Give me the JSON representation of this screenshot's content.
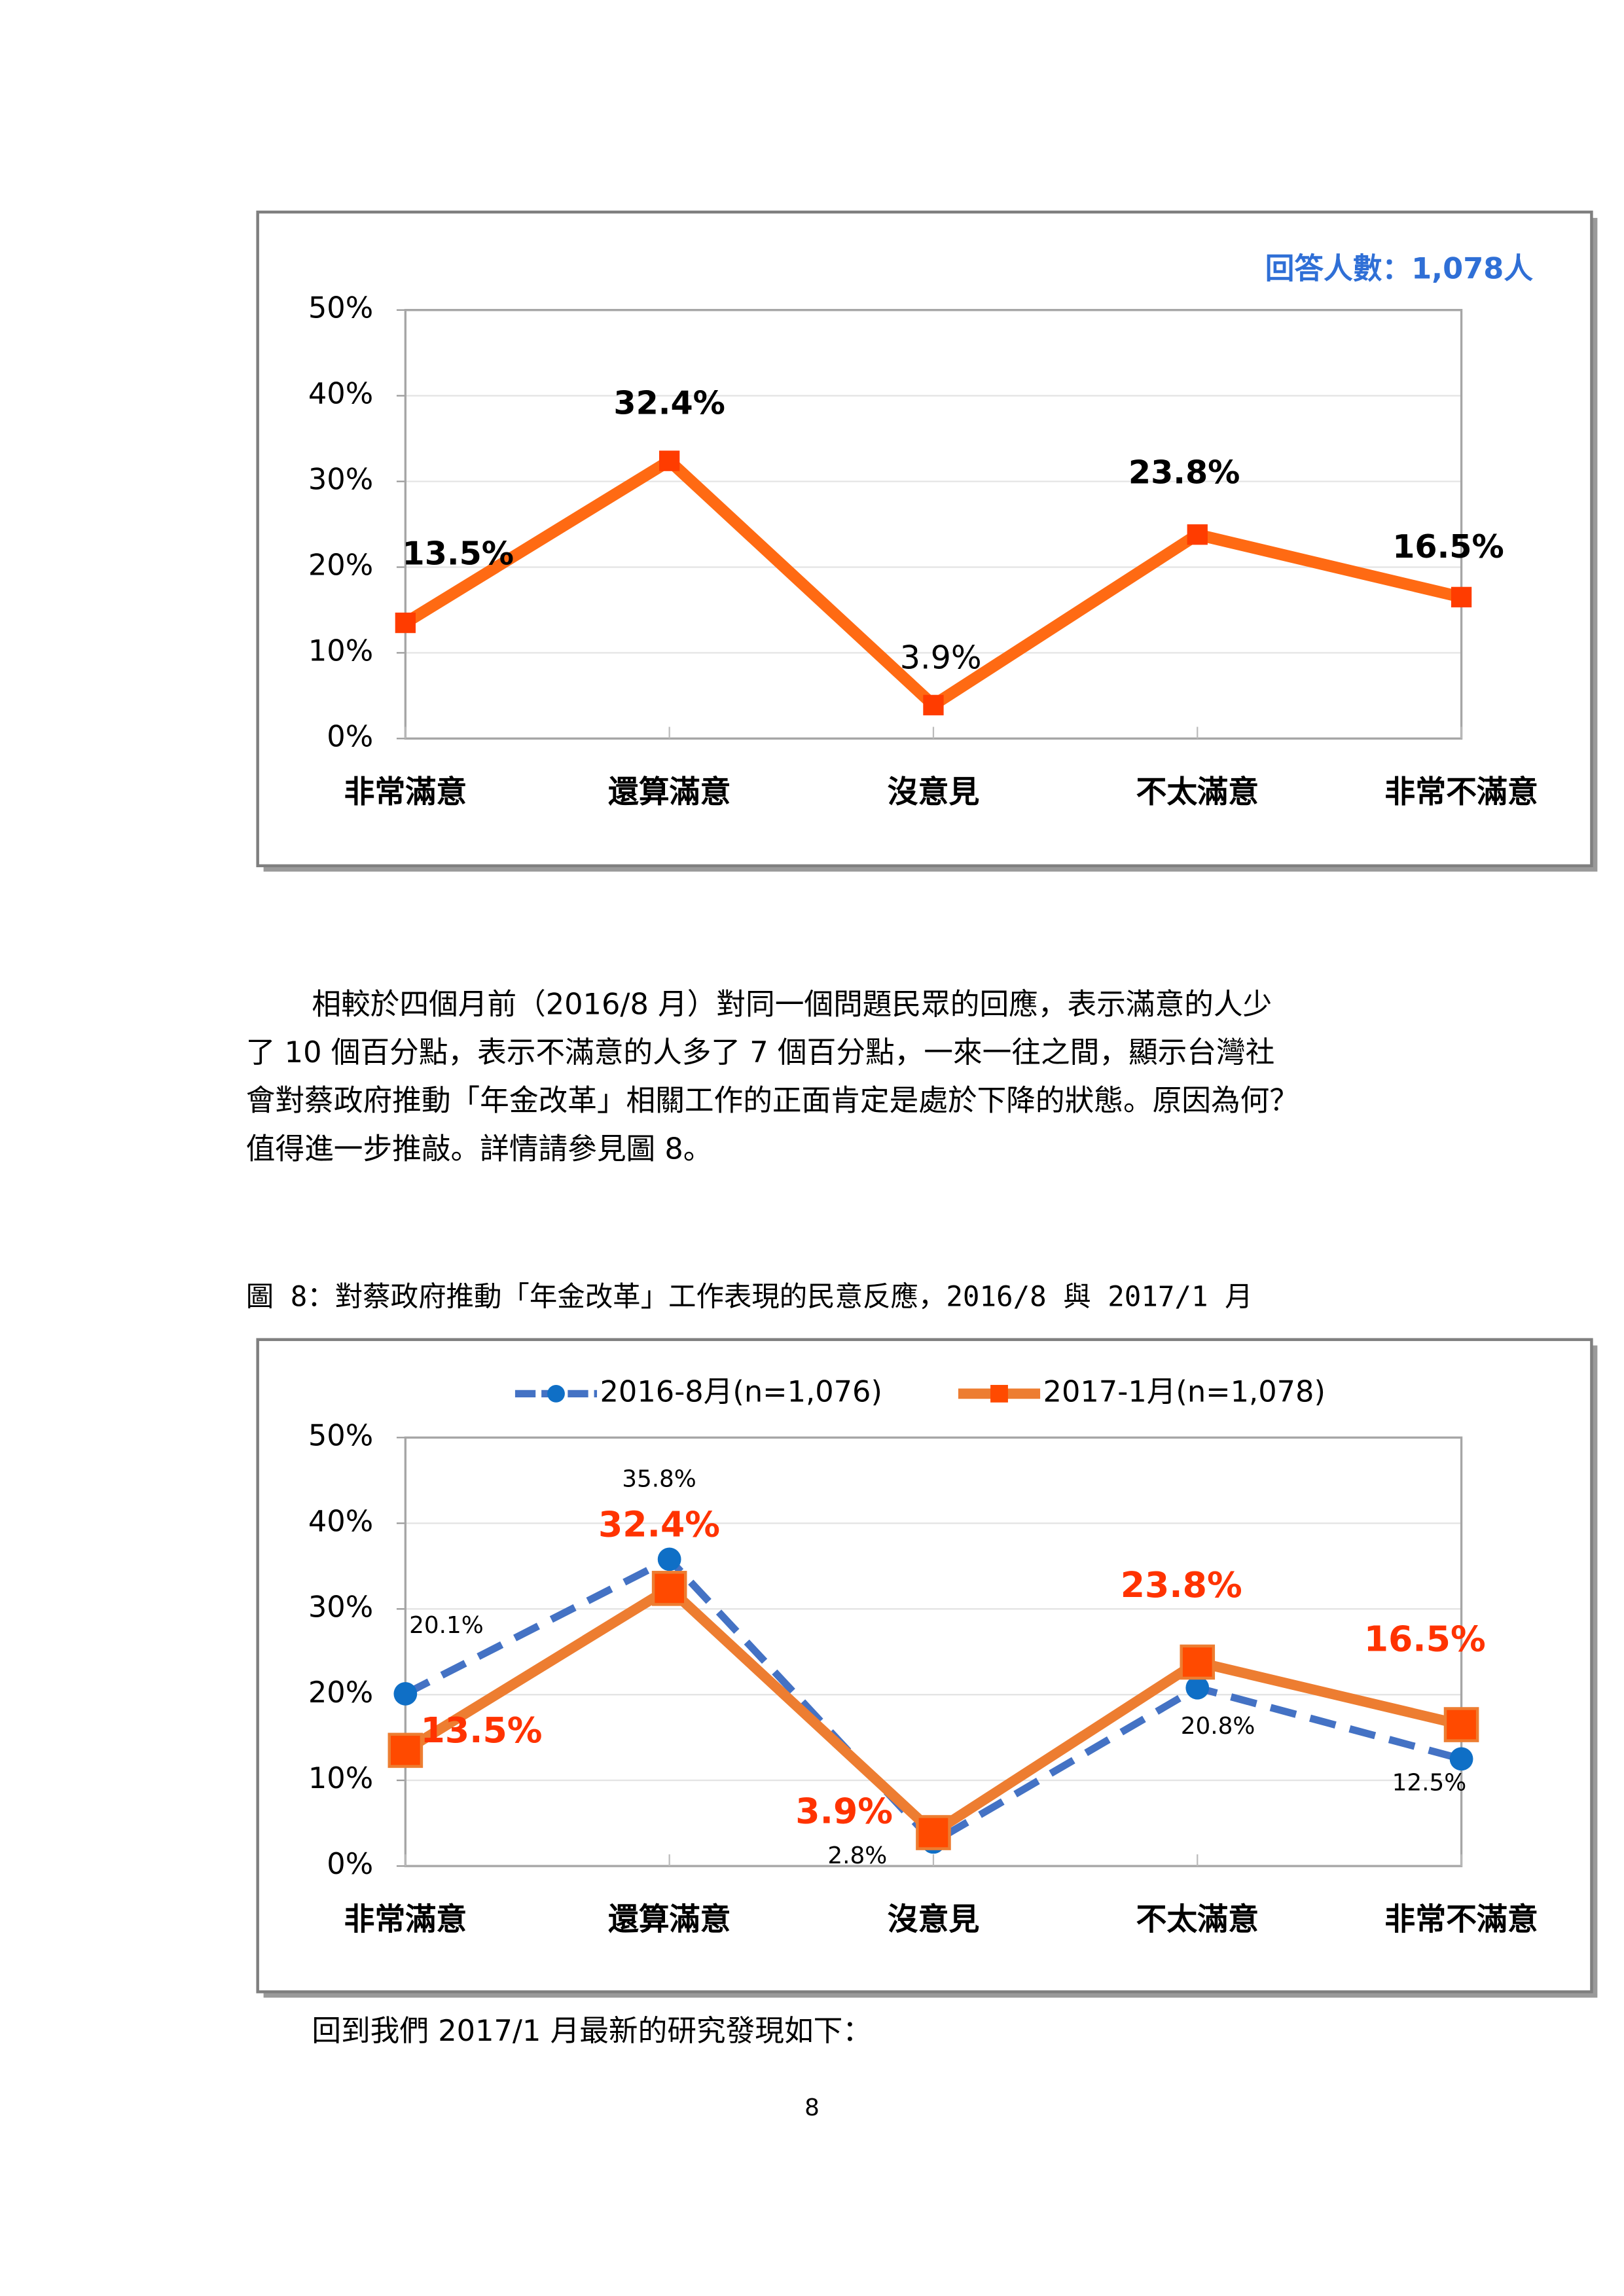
{
  "chart_data": [
    {
      "type": "line",
      "annotation": "回答人數：1,078人",
      "categories": [
        "非常滿意",
        "還算滿意",
        "沒意見",
        "不太滿意",
        "非常不滿意"
      ],
      "values": [
        13.5,
        32.4,
        3.9,
        23.8,
        16.5
      ],
      "value_labels": [
        "13.5%",
        "32.4%",
        "3.9%",
        "23.8%",
        "16.5%"
      ],
      "color": "#ff6a13",
      "ylim": [
        0,
        50
      ],
      "yticks": [
        {
          "value": 0,
          "label": "0%"
        },
        {
          "value": 10,
          "label": "10%"
        },
        {
          "value": 20,
          "label": "20%"
        },
        {
          "value": 30,
          "label": "30%"
        },
        {
          "value": 40,
          "label": "40%"
        },
        {
          "value": 50,
          "label": "50%"
        }
      ],
      "grid": true
    },
    {
      "type": "line",
      "categories": [
        "非常滿意",
        "還算滿意",
        "沒意見",
        "不太滿意",
        "非常不滿意"
      ],
      "series": [
        {
          "name": "2016-8月(n=1,076)",
          "color": "#4472c4",
          "values": [
            20.1,
            35.8,
            2.8,
            20.8,
            12.5
          ],
          "value_labels": [
            "20.1%",
            "35.8%",
            "2.8%",
            "20.8%",
            "12.5%"
          ]
        },
        {
          "name": "2017-1月(n=1,078)",
          "color": "#ed7d31",
          "values": [
            13.5,
            32.4,
            3.9,
            23.8,
            16.5
          ],
          "value_labels": [
            "13.5%",
            "32.4%",
            "3.9%",
            "23.8%",
            "16.5%"
          ]
        }
      ],
      "ylim": [
        0,
        50
      ],
      "yticks": [
        {
          "value": 0,
          "label": "0%"
        },
        {
          "value": 10,
          "label": "10%"
        },
        {
          "value": 20,
          "label": "20%"
        },
        {
          "value": 30,
          "label": "30%"
        },
        {
          "value": 40,
          "label": "40%"
        },
        {
          "value": 50,
          "label": "50%"
        }
      ],
      "grid": true
    }
  ],
  "paragraph": [
    "相較於四個月前（2016/8 月）對同一個問題民眾的回應，表示滿意的人少",
    "了 10 個百分點，表示不滿意的人多了 7 個百分點，一來一往之間，顯示台灣社",
    "會對蔡政府推動「年金改革」相關工作的正面肯定是處於下降的狀態。原因為何？",
    "值得進一步推敲。詳情請參見圖 8。"
  ],
  "figure_caption": "圖 8：對蔡政府推動「年金改革」工作表現的民意反應，2016/8 與 2017/1 月",
  "closing_text": "回到我們 2017/1 月最新的研究發現如下：",
  "page_number": "8"
}
